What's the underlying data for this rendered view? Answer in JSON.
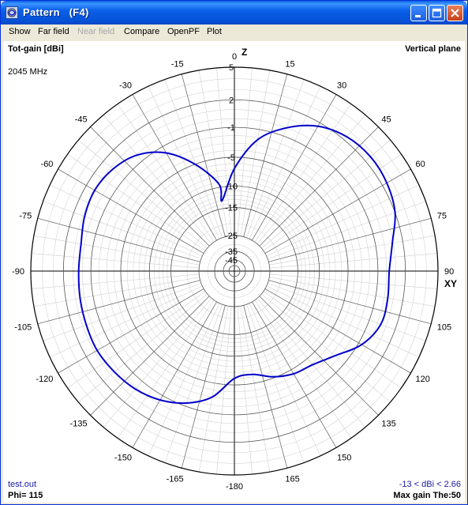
{
  "window": {
    "title": "Pattern   (F4)",
    "controls": {
      "minimize": "minimize-icon",
      "maximize": "maximize-icon",
      "close": "close-icon"
    }
  },
  "menu": [
    {
      "label": "Show",
      "enabled": true
    },
    {
      "label": "Far field",
      "enabled": true
    },
    {
      "label": "Near field",
      "enabled": false
    },
    {
      "label": "Compare",
      "enabled": true
    },
    {
      "label": "OpenPF",
      "enabled": true
    },
    {
      "label": "Plot",
      "enabled": true
    }
  ],
  "plot": {
    "gain_label": "Tot-gain [dBi]",
    "plane_label": "Vertical plane",
    "frequency": "2045 MHz",
    "file": "test.out",
    "phi": "Phi= 115",
    "range": "-13 < dBi < 2.66",
    "max_gain": "Max gain The:50",
    "axis_z": "Z",
    "axis_xy": "XY"
  },
  "chart_data": {
    "type": "polar",
    "ring_labels": [
      "5",
      "2",
      "-1",
      "-5",
      "-10",
      "-15",
      "-25",
      "-35",
      "-45"
    ],
    "ring_values_dbi": [
      5,
      2,
      -1,
      -5,
      -10,
      -15,
      -25,
      -35,
      -45
    ],
    "angle_labels": [
      {
        "deg": 0,
        "text": "0"
      },
      {
        "deg": 15,
        "text": "15"
      },
      {
        "deg": 30,
        "text": "30"
      },
      {
        "deg": 45,
        "text": "45"
      },
      {
        "deg": 60,
        "text": "60"
      },
      {
        "deg": 75,
        "text": "75"
      },
      {
        "deg": 90,
        "text": "90"
      },
      {
        "deg": 105,
        "text": "105"
      },
      {
        "deg": 120,
        "text": "120"
      },
      {
        "deg": 135,
        "text": "135"
      },
      {
        "deg": 150,
        "text": "150"
      },
      {
        "deg": 165,
        "text": "165"
      },
      {
        "deg": 180,
        "text": "-180"
      },
      {
        "deg": 195,
        "text": "-165"
      },
      {
        "deg": 210,
        "text": "-150"
      },
      {
        "deg": 225,
        "text": "-135"
      },
      {
        "deg": 240,
        "text": "-120"
      },
      {
        "deg": 255,
        "text": "-105"
      },
      {
        "deg": 270,
        "text": "-90"
      },
      {
        "deg": 285,
        "text": "-75"
      },
      {
        "deg": 300,
        "text": "-60"
      },
      {
        "deg": 315,
        "text": "-45"
      },
      {
        "deg": 330,
        "text": "-30"
      },
      {
        "deg": 345,
        "text": "-15"
      }
    ],
    "series": [
      {
        "color": "#0000CC",
        "theta_deg": [
          -10,
          0,
          10,
          20,
          30,
          40,
          50,
          60,
          70,
          80,
          90,
          100,
          110,
          120,
          130,
          140,
          150,
          160,
          170,
          180,
          190,
          200,
          210,
          220,
          230,
          240,
          250,
          260,
          270,
          280,
          290,
          300,
          310,
          320,
          330,
          340,
          350
        ],
        "gain_dbi": [
          -13,
          -6.8,
          -2.3,
          0.0,
          1.6,
          2.4,
          2.66,
          2.5,
          2.0,
          0.9,
          0.3,
          0.4,
          0.4,
          -0.6,
          -2.5,
          -3.8,
          -4.3,
          -5.2,
          -6.4,
          -6.0,
          -3.0,
          -1.4,
          -0.4,
          0.2,
          0.5,
          0.7,
          0.6,
          0.5,
          0.4,
          0.4,
          0.8,
          1.0,
          0.7,
          -0.1,
          -1.9,
          -5.1,
          -9.4
        ]
      }
    ]
  }
}
